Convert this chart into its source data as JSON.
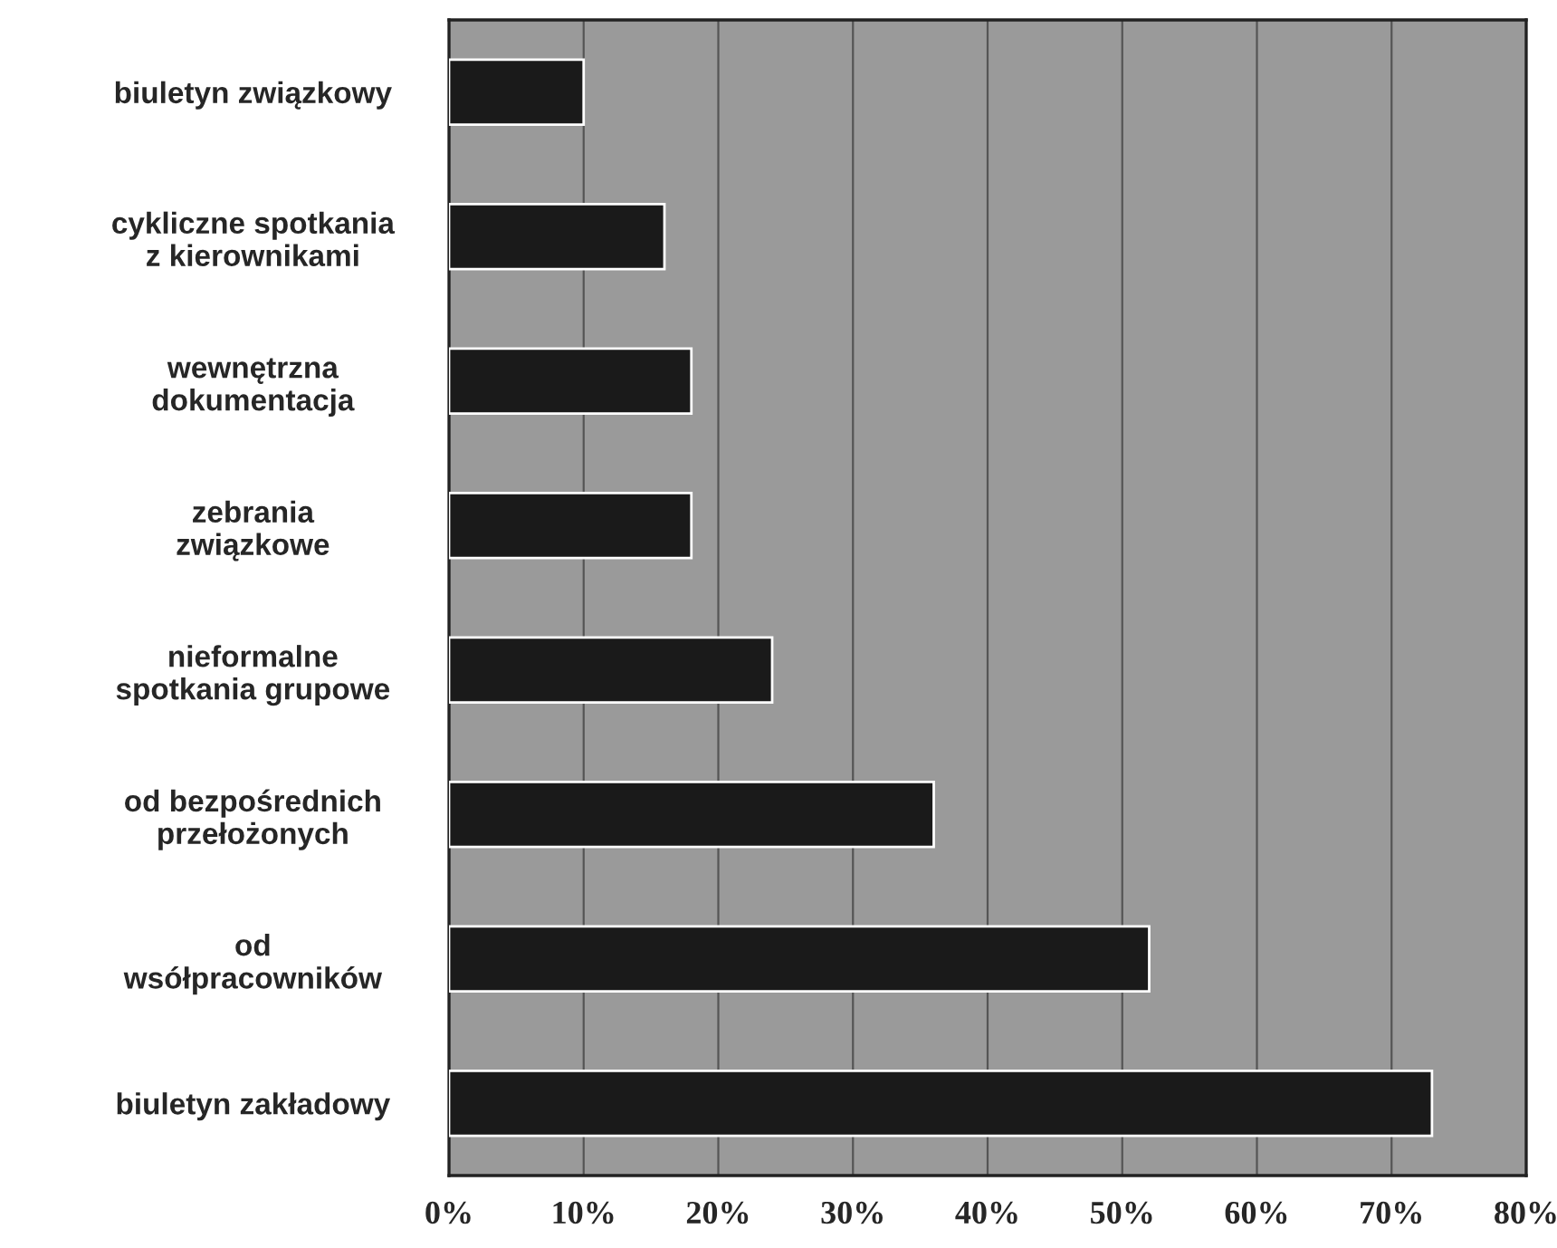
{
  "chart_data": {
    "type": "bar",
    "orientation": "horizontal",
    "categories": [
      "biuletyn związkowy",
      "cykliczne spotkania\nz kierownikami",
      "wewnętrzna\ndokumentacja",
      "zebrania\nzwiązkowe",
      "nieformalne\nspotkania grupowe",
      "od bezpośrednich\nprzełożonych",
      "od\nwsółpracowników",
      "biuletyn zakładowy"
    ],
    "values": [
      10,
      16,
      18,
      18,
      24,
      36,
      52,
      73
    ],
    "color": "#1a1a1a",
    "xlim": [
      0,
      80
    ],
    "xticks": [
      {
        "value": 0,
        "label": "0%"
      },
      {
        "value": 10,
        "label": "10%"
      },
      {
        "value": 20,
        "label": "20%"
      },
      {
        "value": 30,
        "label": "30%"
      },
      {
        "value": 40,
        "label": "40%"
      },
      {
        "value": 50,
        "label": "50%"
      },
      {
        "value": 60,
        "label": "60%"
      },
      {
        "value": 70,
        "label": "70%"
      },
      {
        "value": 80,
        "label": "80%"
      }
    ],
    "grid": "x"
  }
}
